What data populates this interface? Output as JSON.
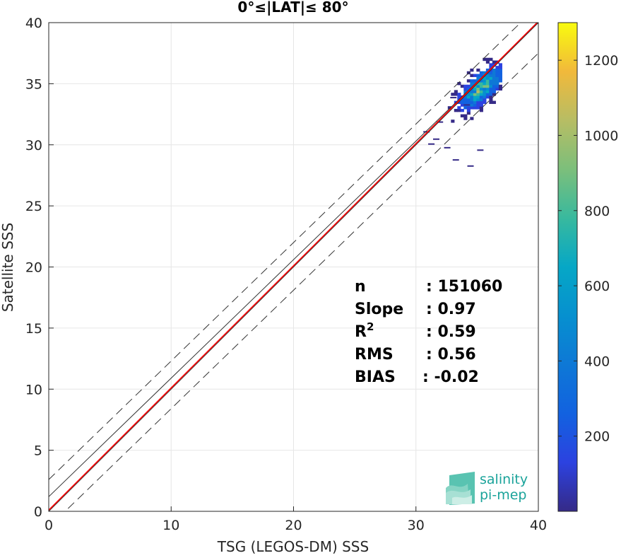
{
  "chart_data": {
    "type": "heatmap",
    "title": "0°≤|LAT|≤ 80°",
    "xlabel": "TSG (LEGOS-DM) SSS",
    "ylabel": "Satellite SSS",
    "xlim": [
      0,
      40
    ],
    "ylim": [
      0,
      40
    ],
    "xticks": [
      "0",
      "10",
      "20",
      "30",
      "40"
    ],
    "yticks": [
      "0",
      "5",
      "10",
      "15",
      "20",
      "25",
      "30",
      "35",
      "40"
    ],
    "grid": true,
    "lines": [
      {
        "name": "identity",
        "slope": 1.0,
        "intercept": 0.0,
        "color": "#333333",
        "style": "solid"
      },
      {
        "name": "upper-bound",
        "slope": 0.97,
        "intercept": 2.6,
        "color": "#333333",
        "style": "dashed"
      },
      {
        "name": "lower-bound",
        "slope": 0.97,
        "intercept": -1.3,
        "color": "#333333",
        "style": "dashed"
      },
      {
        "name": "fit",
        "slope": 0.97,
        "intercept": 1.2,
        "color": "#333333",
        "style": "solid"
      },
      {
        "name": "regression",
        "slope": 1.0,
        "intercept": 0.1,
        "color": "#ff0000",
        "style": "solid"
      }
    ],
    "density_center": [
      35.2,
      34.6
    ],
    "density_peak": 1290,
    "colorbar": {
      "min": 0,
      "max": 1300,
      "ticks": [
        "200",
        "400",
        "600",
        "800",
        "1000",
        "1200"
      ],
      "colormap": "parula"
    },
    "stats": [
      {
        "label": "n",
        "value": ": 151060"
      },
      {
        "label": "Slope",
        "value": ": 0.97"
      },
      {
        "label": "R",
        "sup": "2",
        "value": ": 0.59"
      },
      {
        "label": "RMS",
        "value": ": 0.56"
      },
      {
        "label": "BIAS",
        "value": ": -0.02"
      }
    ]
  },
  "logo": {
    "line1": "salinity",
    "line2": "pi-mep"
  }
}
